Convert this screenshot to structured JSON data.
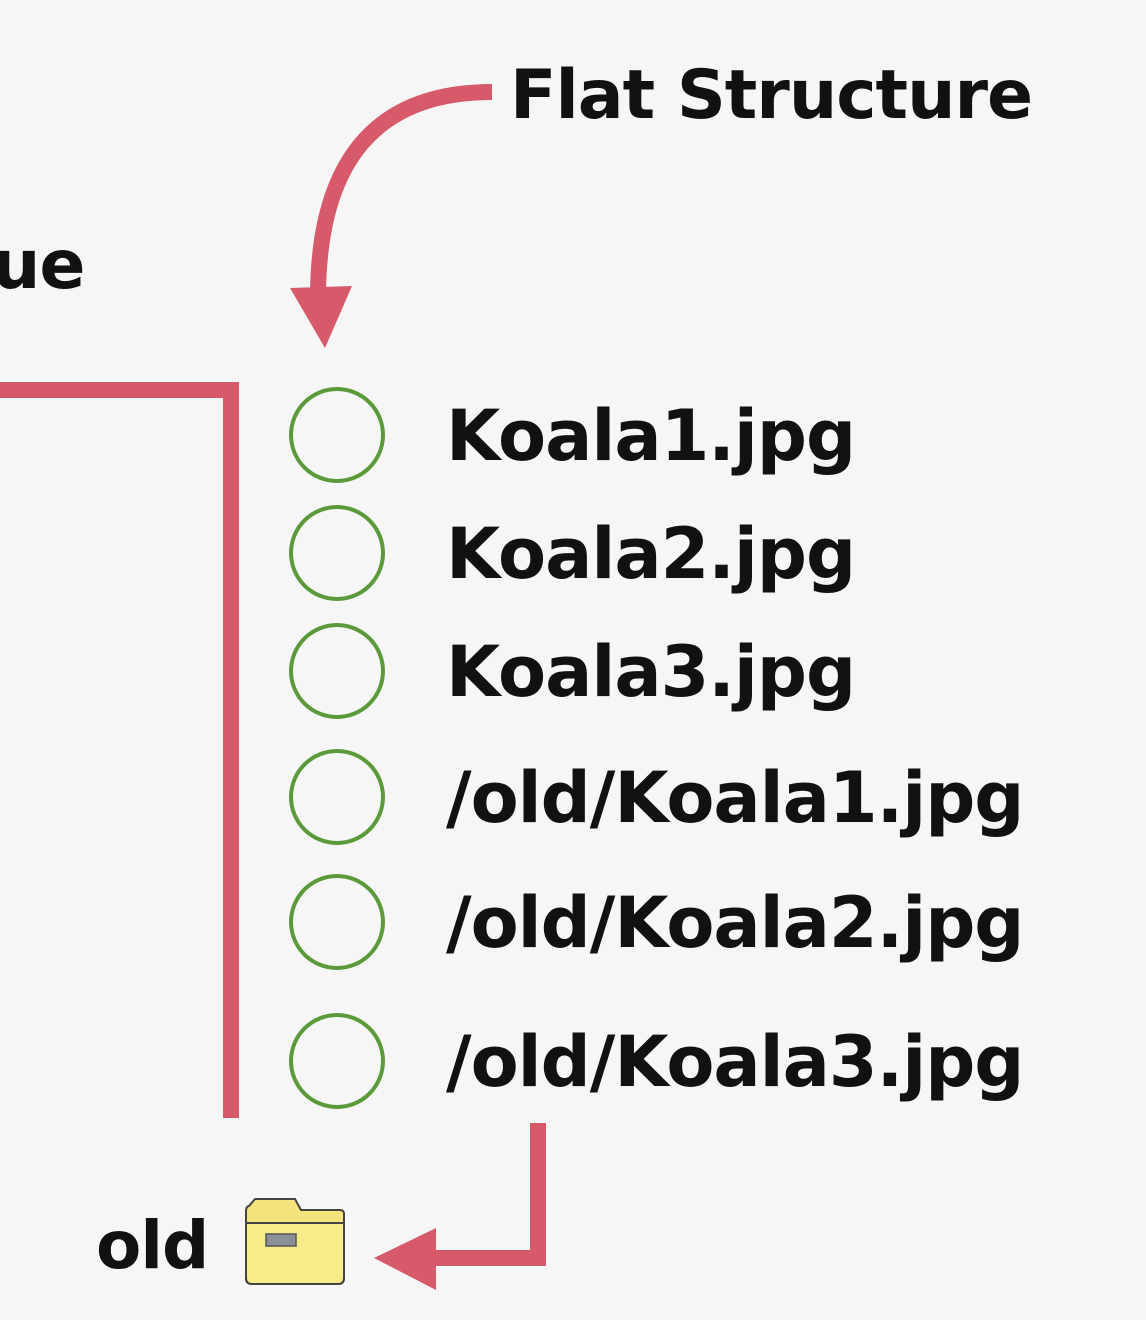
{
  "title": "Flat Structure",
  "cut_off_text": "ue",
  "files": [
    {
      "name": "Koala1.jpg"
    },
    {
      "name": "Koala2.jpg"
    },
    {
      "name": "Koala3.jpg"
    },
    {
      "name": "/old/Koala1.jpg"
    },
    {
      "name": "/old/Koala2.jpg"
    },
    {
      "name": "/old/Koala3.jpg"
    }
  ],
  "folder": {
    "label": "old",
    "icon": "folder-icon"
  },
  "colors": {
    "background": "#f6f6f6",
    "arrow": "#d65a6a",
    "circle": "#5b9a3a",
    "folder_fill": "#f8ec8a",
    "folder_tab": "#f5e47c",
    "text": "#111111"
  }
}
